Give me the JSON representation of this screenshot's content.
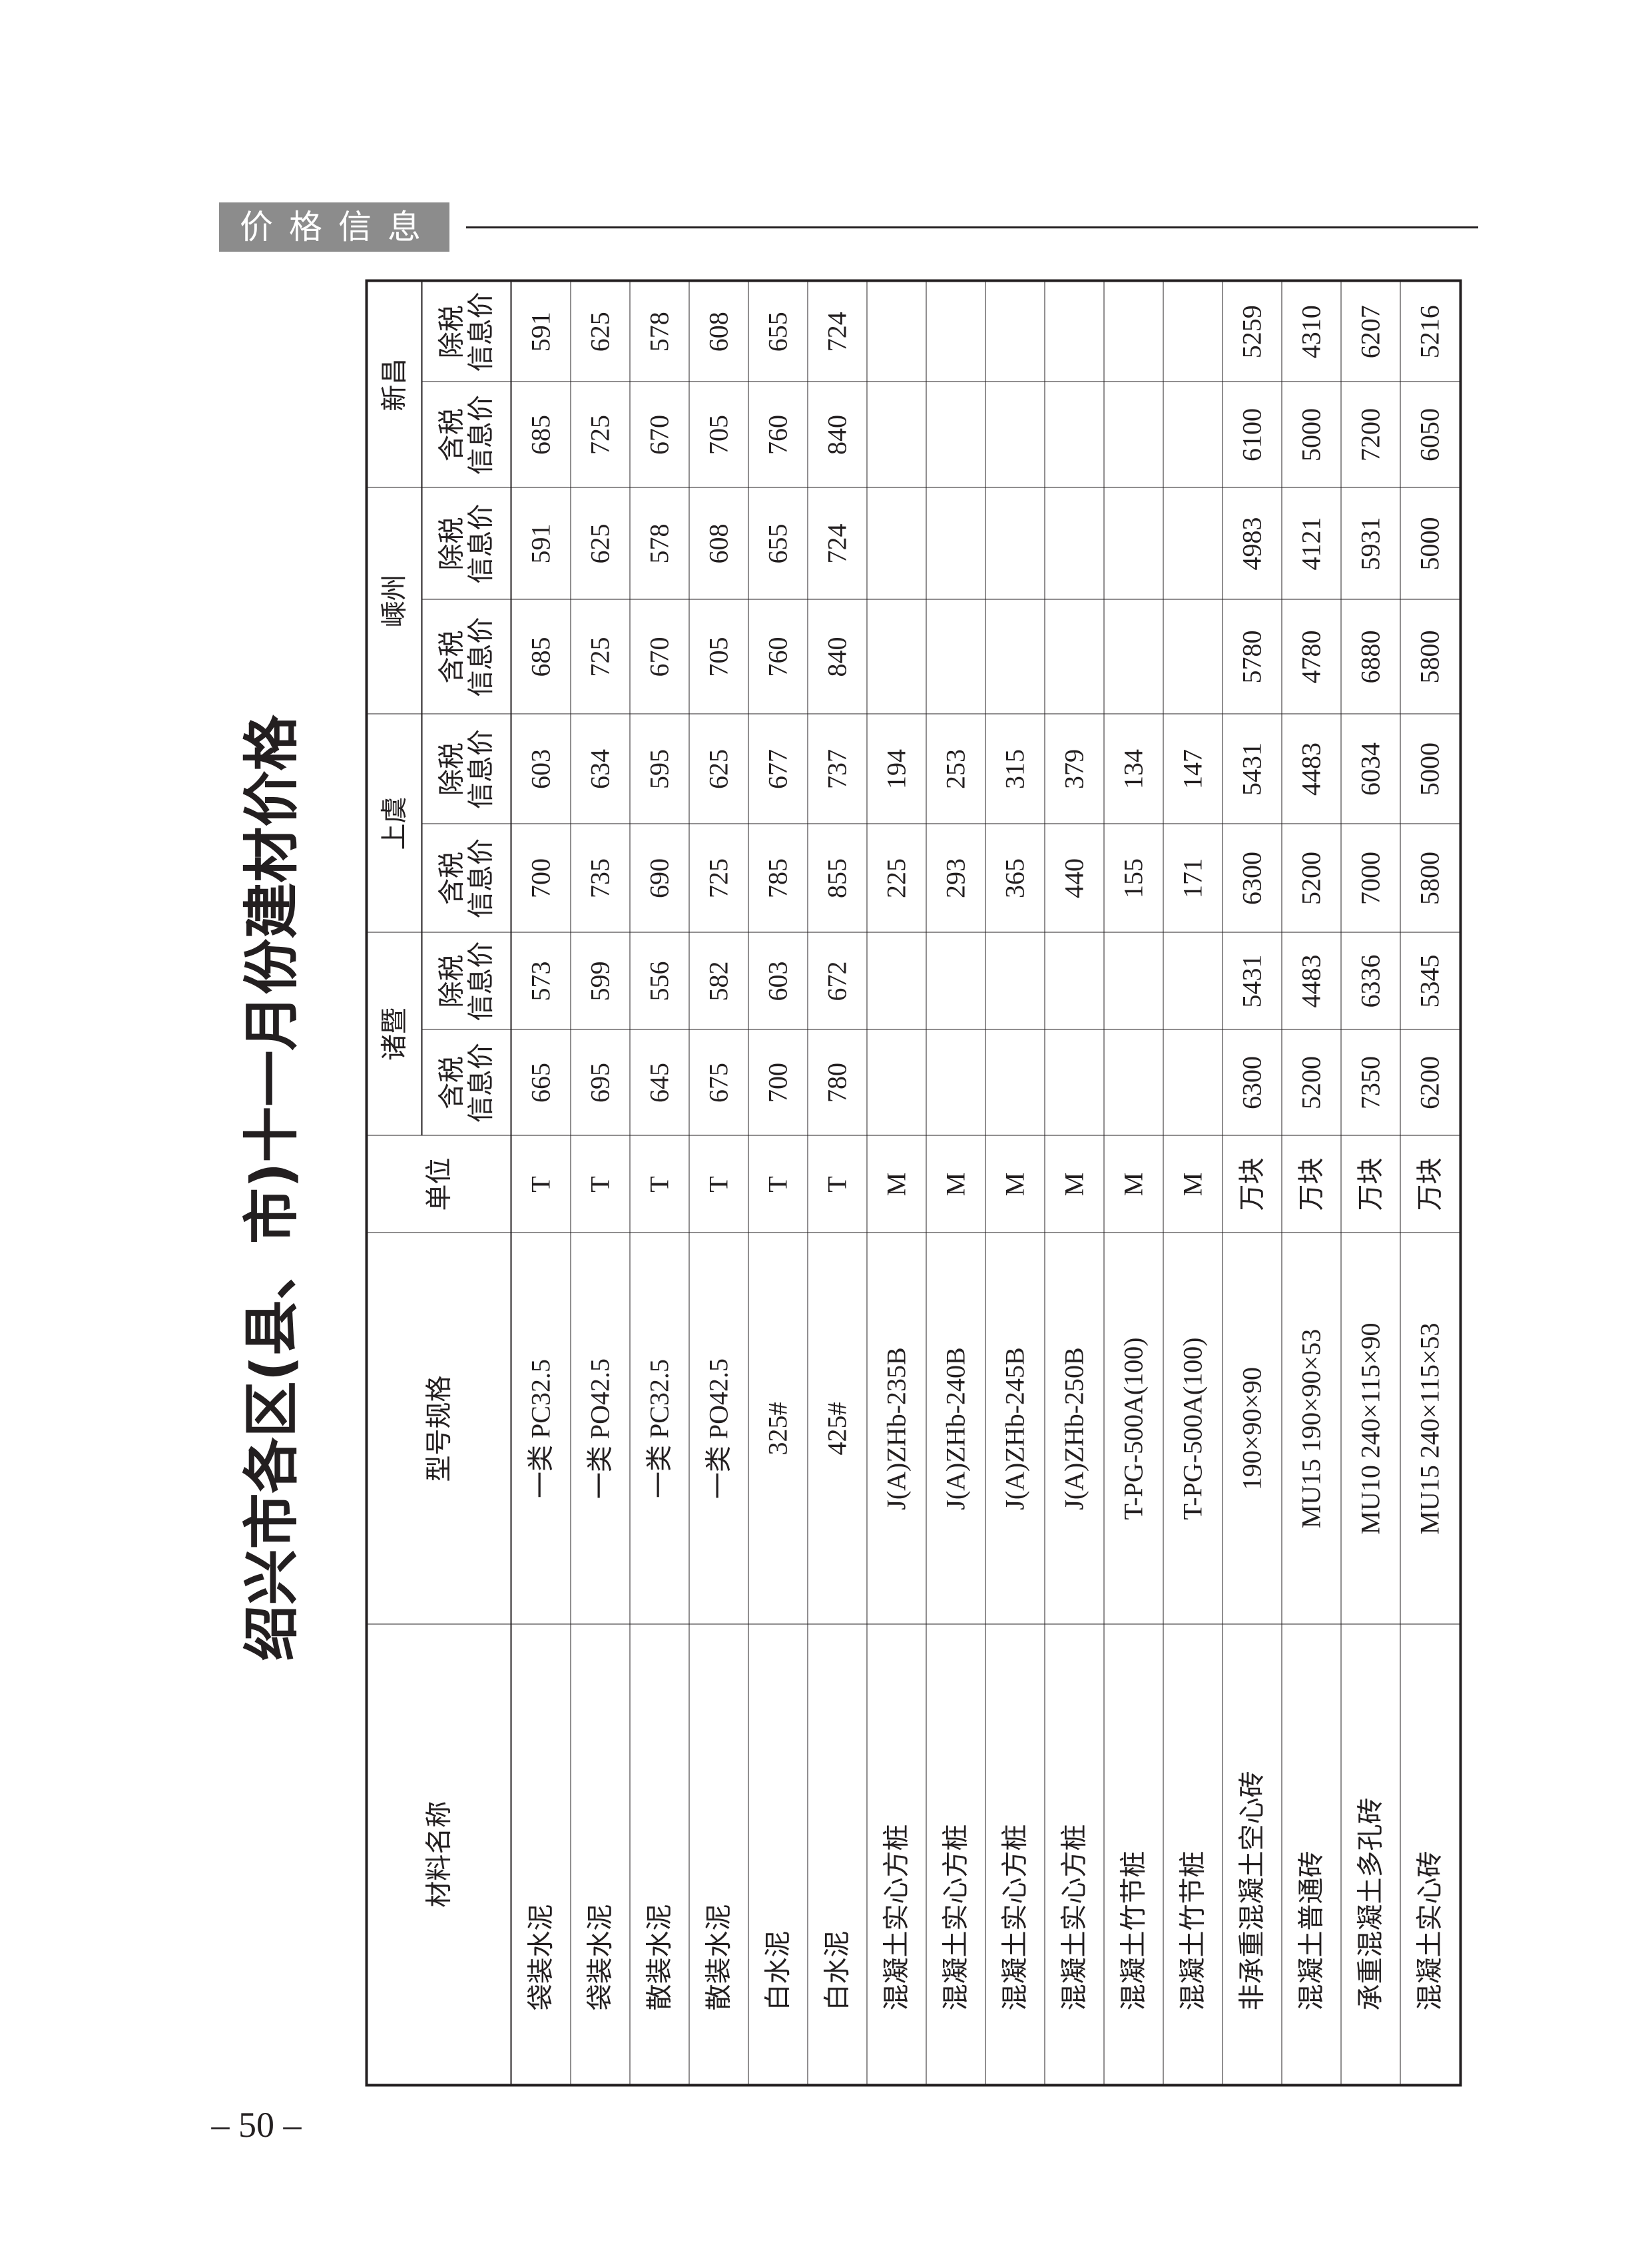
{
  "header": {
    "section_label": "价格信息"
  },
  "title": "绍兴市各区(县、市)十一月份建材价格",
  "page_number": "– 50 –",
  "table": {
    "col_material": "材料名称",
    "col_spec": "型号规格",
    "col_unit": "单位",
    "districts": [
      "诸暨",
      "上虞",
      "嵊州",
      "新昌"
    ],
    "sub_tax_incl": "含税\n信息价",
    "sub_tax_excl": "除税\n信息价",
    "rows": [
      {
        "name": "袋装水泥",
        "spec": "一类 PC32.5",
        "unit": "T",
        "prices": [
          "665",
          "573",
          "700",
          "603",
          "685",
          "591",
          "685",
          "591"
        ]
      },
      {
        "name": "袋装水泥",
        "spec": "一类 PO42.5",
        "unit": "T",
        "prices": [
          "695",
          "599",
          "735",
          "634",
          "725",
          "625",
          "725",
          "625"
        ]
      },
      {
        "name": "散装水泥",
        "spec": "一类 PC32.5",
        "unit": "T",
        "prices": [
          "645",
          "556",
          "690",
          "595",
          "670",
          "578",
          "670",
          "578"
        ]
      },
      {
        "name": "散装水泥",
        "spec": "一类 PO42.5",
        "unit": "T",
        "prices": [
          "675",
          "582",
          "725",
          "625",
          "705",
          "608",
          "705",
          "608"
        ]
      },
      {
        "name": "白水泥",
        "spec": "325#",
        "unit": "T",
        "prices": [
          "700",
          "603",
          "785",
          "677",
          "760",
          "655",
          "760",
          "655"
        ]
      },
      {
        "name": "白水泥",
        "spec": "425#",
        "unit": "T",
        "prices": [
          "780",
          "672",
          "855",
          "737",
          "840",
          "724",
          "840",
          "724"
        ]
      },
      {
        "name": "混凝土实心方桩",
        "spec": "J(A)ZHb-235B",
        "unit": "M",
        "prices": [
          "",
          "",
          "225",
          "194",
          "",
          "",
          "",
          ""
        ]
      },
      {
        "name": "混凝土实心方桩",
        "spec": "J(A)ZHb-240B",
        "unit": "M",
        "prices": [
          "",
          "",
          "293",
          "253",
          "",
          "",
          "",
          ""
        ]
      },
      {
        "name": "混凝土实心方桩",
        "spec": "J(A)ZHb-245B",
        "unit": "M",
        "prices": [
          "",
          "",
          "365",
          "315",
          "",
          "",
          "",
          ""
        ]
      },
      {
        "name": "混凝土实心方桩",
        "spec": "J(A)ZHb-250B",
        "unit": "M",
        "prices": [
          "",
          "",
          "440",
          "379",
          "",
          "",
          "",
          ""
        ]
      },
      {
        "name": "混凝土竹节桩",
        "spec": "T-PG-500A(100)",
        "unit": "M",
        "prices": [
          "",
          "",
          "155",
          "134",
          "",
          "",
          "",
          ""
        ]
      },
      {
        "name": "混凝土竹节桩",
        "spec": "T-PG-500A(100)",
        "unit": "M",
        "prices": [
          "",
          "",
          "171",
          "147",
          "",
          "",
          "",
          ""
        ]
      },
      {
        "name": "非承重混凝土空心砖",
        "spec": "190×90×90",
        "unit": "万块",
        "prices": [
          "6300",
          "5431",
          "6300",
          "5431",
          "5780",
          "4983",
          "6100",
          "5259"
        ]
      },
      {
        "name": "混凝土普通砖",
        "spec": "MU15 190×90×53",
        "unit": "万块",
        "prices": [
          "5200",
          "4483",
          "5200",
          "4483",
          "4780",
          "4121",
          "5000",
          "4310"
        ]
      },
      {
        "name": "承重混凝土多孔砖",
        "spec": "MU10 240×115×90",
        "unit": "万块",
        "prices": [
          "7350",
          "6336",
          "7000",
          "6034",
          "6880",
          "5931",
          "7200",
          "6207"
        ]
      },
      {
        "name": "混凝土实心砖",
        "spec": "MU15 240×115×53",
        "unit": "万块",
        "prices": [
          "6200",
          "5345",
          "5800",
          "5000",
          "5800",
          "5000",
          "6050",
          "5216"
        ]
      }
    ]
  }
}
